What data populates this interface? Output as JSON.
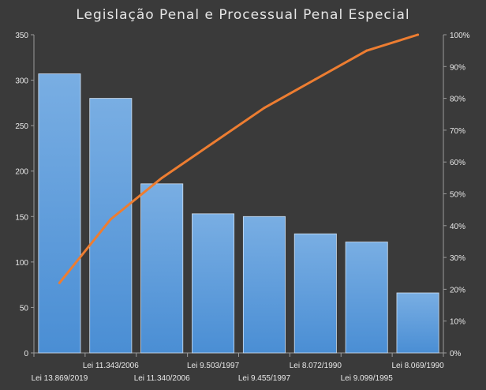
{
  "chart_data": {
    "type": "bar",
    "title": "Legislação Penal e Processual Penal Especial",
    "categories": [
      "Lei 13.869/2019",
      "Lei 11.343/2006",
      "Lei 11.340/2006",
      "Lei 9.503/1997",
      "Lei 9.455/1997",
      "Lei 8.072/1990",
      "Lei 9.099/1995",
      "Lei 8.069/1990"
    ],
    "series": [
      {
        "type": "bar",
        "axis": "left",
        "values": [
          307,
          280,
          186,
          153,
          150,
          131,
          122,
          66
        ]
      },
      {
        "type": "line",
        "axis": "right",
        "values": [
          22,
          42,
          55,
          66,
          77,
          86,
          95,
          100
        ]
      }
    ],
    "y_left": {
      "lim": [
        0,
        350
      ],
      "ticks": [
        "0",
        "50",
        "100",
        "150",
        "200",
        "250",
        "300",
        "350"
      ]
    },
    "y_right": {
      "lim": [
        0,
        100
      ],
      "ticks": [
        "0%",
        "10%",
        "20%",
        "30%",
        "40%",
        "50%",
        "60%",
        "70%",
        "80%",
        "90%",
        "100%"
      ]
    },
    "xlabel": "",
    "ylabel": "",
    "grid": false,
    "legend": "none",
    "colors": {
      "background": "#3a3a3a",
      "bar_fill_top": "#79aee3",
      "bar_fill_bottom": "#4a8ed4",
      "bar_stroke": "#cfe0f2",
      "line": "#ed7d31",
      "axis": "#9a9a9a",
      "text": "#e8e8e8"
    }
  }
}
